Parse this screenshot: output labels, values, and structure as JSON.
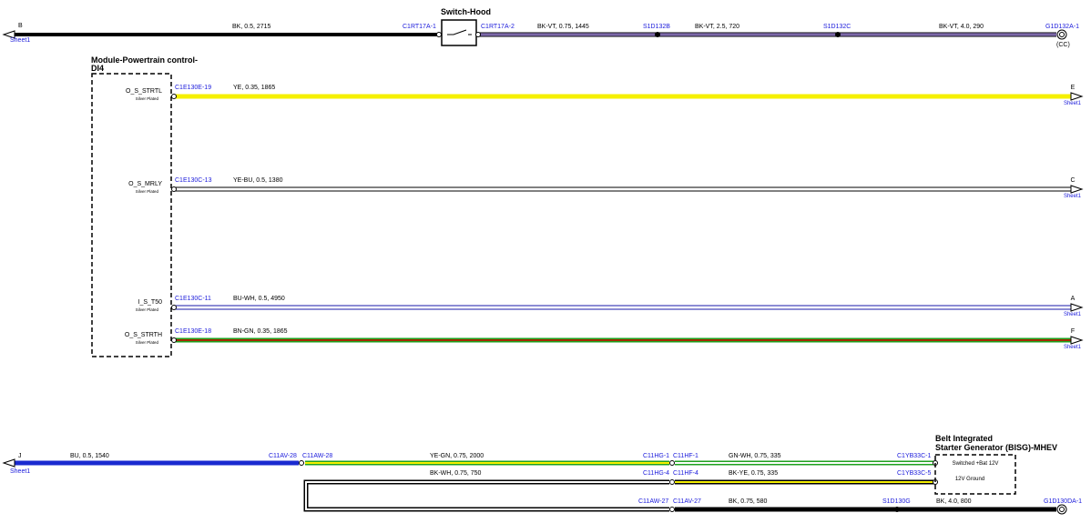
{
  "top": {
    "ref": "B",
    "sheet": "Sheet1",
    "wire1": "BK, 0.5, 2715",
    "pin_left": "C1RT17A-1",
    "switch": "Switch-Hood",
    "pin_right": "C1RT17A-2",
    "wire2": "BK-VT, 0.75, 1445",
    "splice1": "S1D132B",
    "wire3": "BK-VT, 2.5, 720",
    "splice2": "S1D132C",
    "wire4": "BK-VT, 4.0, 290",
    "ground": "G1D132A-1",
    "ground_note": "(CC)"
  },
  "module": {
    "title": "Module-Powertrain control-",
    "title2": "DI4",
    "pins": [
      {
        "name": "O_S_STRTL",
        "plating": "Silver Plated",
        "connector": "C1E130E-19",
        "wire": "YE, 0.35, 1865",
        "ref": "E",
        "sheet": "Sheet1"
      },
      {
        "name": "O_S_MRLY",
        "plating": "Silver Plated",
        "connector": "C1E130C-13",
        "wire": "YE-BU, 0.5, 1380",
        "ref": "C",
        "sheet": "Sheet1"
      },
      {
        "name": "I_S_T50",
        "plating": "Silver Plated",
        "connector": "C1E130C-11",
        "wire": "BU-WH, 0.5, 4950",
        "ref": "A",
        "sheet": "Sheet1"
      },
      {
        "name": "O_S_STRTH",
        "plating": "Silver Plated",
        "connector": "C1E130E-18",
        "wire": "BN-GN, 0.35, 1865",
        "ref": "F",
        "sheet": "Sheet1"
      }
    ]
  },
  "bottom": {
    "ref": "J",
    "sheet": "Sheet1",
    "wire1": "BU, 0.5, 1540",
    "conn_av28": "C11AV-28",
    "conn_aw28": "C11AW-28",
    "row1": {
      "wire_a": "YE-GN, 0.75, 2000",
      "conn_hg": "C11HG-1",
      "conn_hf": "C11HF-1",
      "wire_b": "GN-WH, 0.75, 335",
      "conn_yb": "C1YB33C-1"
    },
    "row2": {
      "wire_a": "BK-WH, 0.75, 750",
      "conn_hg": "C11HG-4",
      "conn_hf": "C11HF-4",
      "wire_b": "BK-YE, 0.75, 335",
      "conn_yb": "C1YB33C-5"
    },
    "row3": {
      "conn_aw27": "C11AW-27",
      "conn_av27": "C11AV-27",
      "wire_a": "BK, 0.75, 580",
      "splice": "S1D130G",
      "wire_b": "BK, 4.0, 800",
      "ground": "G1D130DA-1"
    }
  },
  "bisg": {
    "title": "Belt Integrated",
    "title2": "Starter Generator (BISG)-MHEV",
    "pins": [
      "Switched +Bat 12V",
      "12V Ground"
    ]
  }
}
